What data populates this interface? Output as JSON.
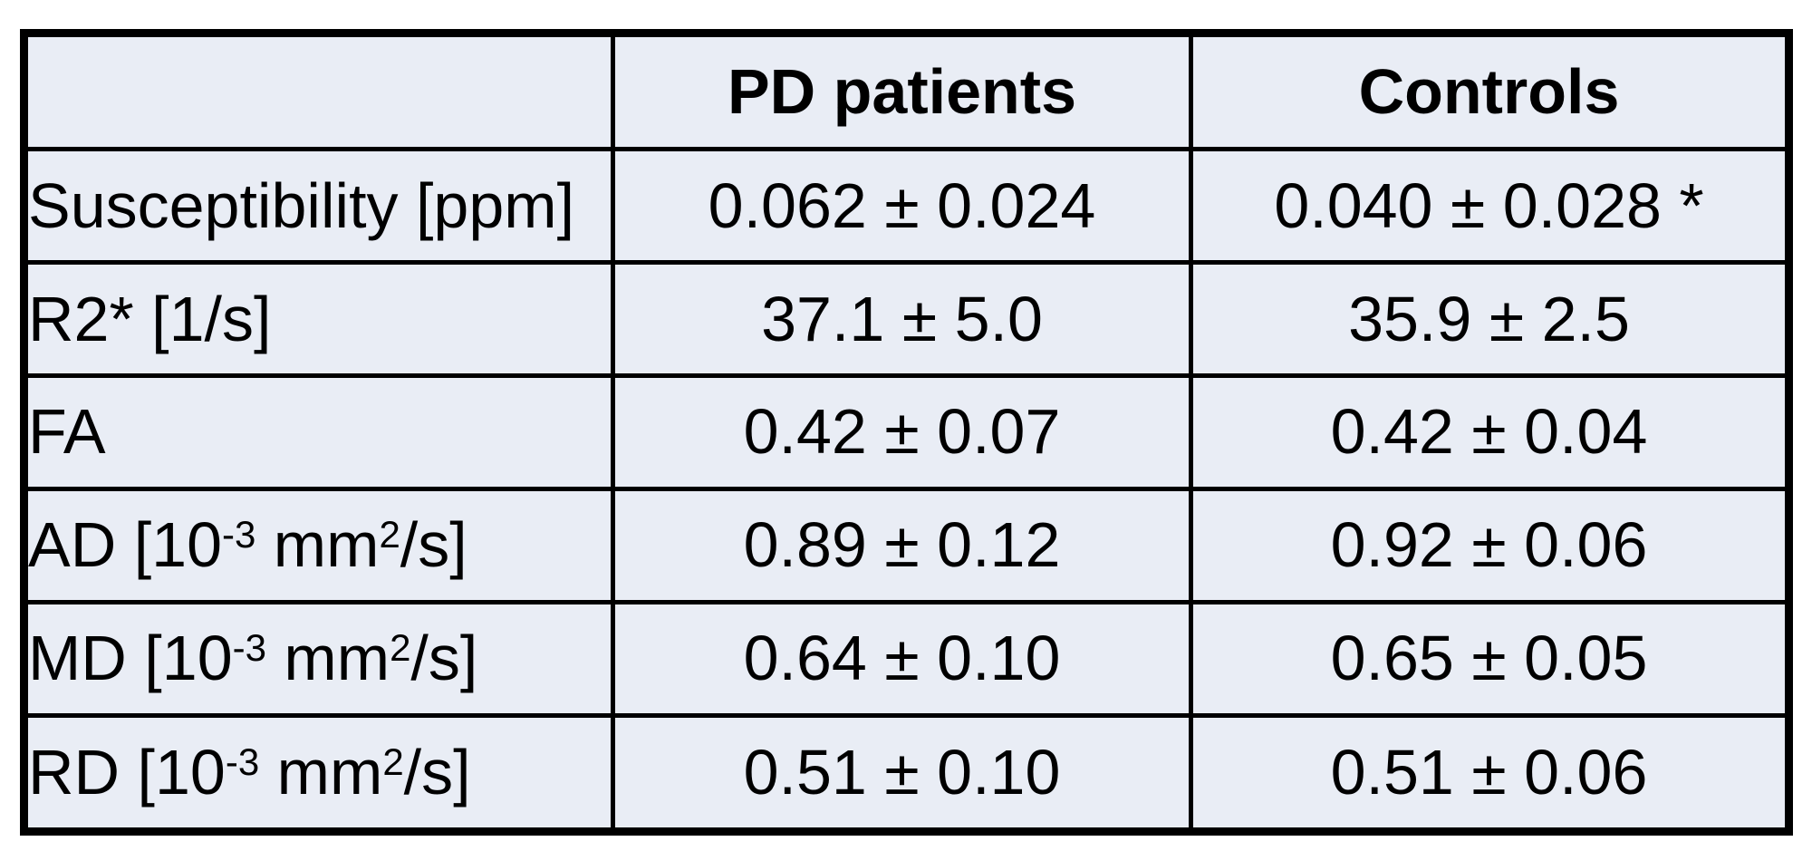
{
  "colors": {
    "cell_background": "#e9edf5",
    "border": "#000000",
    "text": "#000000",
    "page_background": "#ffffff"
  },
  "chart_data": {
    "type": "table",
    "columns": [
      "",
      "PD patients",
      "Controls"
    ],
    "rows": [
      [
        "Susceptibility [ppm]",
        "0.062 ± 0.024",
        "0.040 ± 0.028 *"
      ],
      [
        "R2* [1/s]",
        "37.1 ± 5.0",
        "35.9 ± 2.5"
      ],
      [
        "FA",
        "0.42 ± 0.07",
        "0.42 ± 0.04"
      ],
      [
        "AD [10^-3 mm^2/s]",
        "0.89 ± 0.12",
        "0.92 ± 0.06"
      ],
      [
        "MD [10^-3 mm^2/s]",
        "0.64 ± 0.10",
        "0.65 ± 0.05"
      ],
      [
        "RD [10^-3 mm^2/s]",
        "0.51 ± 0.10",
        "0.51 ± 0.06"
      ]
    ],
    "significance_marker": "*"
  },
  "table": {
    "header": {
      "col0": "",
      "col1": "PD patients",
      "col2": "Controls"
    },
    "rows": [
      {
        "label_runs": [
          {
            "t": "Susceptibility [ppm]"
          }
        ],
        "pd": "0.062 ± 0.024",
        "controls": "0.040 ± 0.028 *"
      },
      {
        "label_runs": [
          {
            "t": "R2* [1/s]"
          }
        ],
        "pd": "37.1 ± 5.0",
        "controls": "35.9 ± 2.5"
      },
      {
        "label_runs": [
          {
            "t": "FA"
          }
        ],
        "pd": "0.42 ± 0.07",
        "controls": "0.42 ± 0.04"
      },
      {
        "label_runs": [
          {
            "t": "AD [10"
          },
          {
            "t": "-3",
            "sup": true
          },
          {
            "t": " mm"
          },
          {
            "t": "2",
            "sup": true
          },
          {
            "t": "/s]"
          }
        ],
        "pd": "0.89 ± 0.12",
        "controls": "0.92 ± 0.06"
      },
      {
        "label_runs": [
          {
            "t": "MD [10"
          },
          {
            "t": "-3",
            "sup": true
          },
          {
            "t": " mm"
          },
          {
            "t": "2",
            "sup": true
          },
          {
            "t": "/s]"
          }
        ],
        "pd": "0.64 ± 0.10",
        "controls": "0.65 ± 0.05"
      },
      {
        "label_runs": [
          {
            "t": "RD [10"
          },
          {
            "t": "-3",
            "sup": true
          },
          {
            "t": " mm"
          },
          {
            "t": "2",
            "sup": true
          },
          {
            "t": "/s]"
          }
        ],
        "pd": "0.51 ± 0.10",
        "controls": "0.51 ± 0.06"
      }
    ]
  }
}
